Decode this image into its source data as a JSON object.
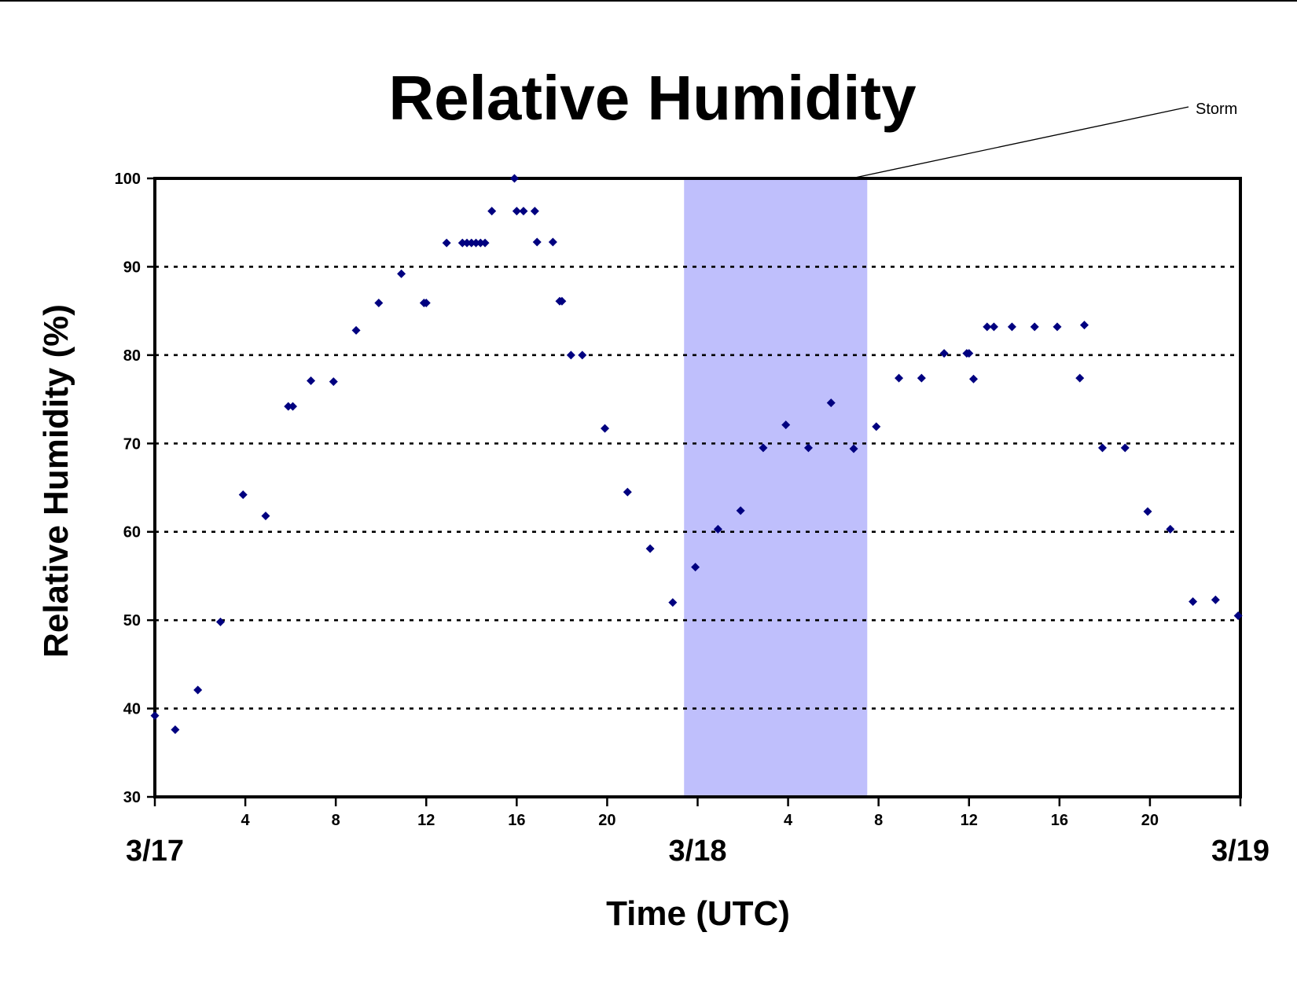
{
  "chart_data": {
    "type": "scatter",
    "title": "Relative Humidity",
    "xlabel": "Time (UTC)",
    "ylabel": "Relative Humidity (%)",
    "xlim": [
      0,
      48
    ],
    "ylim": [
      30,
      100
    ],
    "y_ticks": [
      "30",
      "40",
      "50",
      "60",
      "70",
      "80",
      "90",
      "100"
    ],
    "y_tick_values": [
      30,
      40,
      50,
      60,
      70,
      80,
      90,
      100
    ],
    "x_hour_ticks": [
      {
        "x": 4,
        "label": "4"
      },
      {
        "x": 8,
        "label": "8"
      },
      {
        "x": 12,
        "label": "12"
      },
      {
        "x": 16,
        "label": "16"
      },
      {
        "x": 20,
        "label": "20"
      },
      {
        "x": 28,
        "label": "4"
      },
      {
        "x": 32,
        "label": "8"
      },
      {
        "x": 36,
        "label": "12"
      },
      {
        "x": 40,
        "label": "16"
      },
      {
        "x": 44,
        "label": "20"
      }
    ],
    "x_minor_ticks": [
      0,
      4,
      8,
      12,
      16,
      20,
      24,
      28,
      32,
      36,
      40,
      44,
      48
    ],
    "x_date_ticks": [
      {
        "x": 0,
        "label": "3/17"
      },
      {
        "x": 24,
        "label": "3/18"
      },
      {
        "x": 48,
        "label": "3/19"
      }
    ],
    "grid": {
      "horizontal": "dotted",
      "vertical": false
    },
    "shaded_region": {
      "x_start": 23.4,
      "x_end": 31.5,
      "color": "#bfbffc"
    },
    "annotation": {
      "text": "Storm",
      "point_x": 30.8,
      "point_y": 100
    },
    "marker_color": "#000080",
    "points": [
      {
        "x": 0.0,
        "y": 39.2
      },
      {
        "x": 0.9,
        "y": 37.6
      },
      {
        "x": 1.9,
        "y": 42.1
      },
      {
        "x": 2.9,
        "y": 49.8
      },
      {
        "x": 3.9,
        "y": 64.2
      },
      {
        "x": 4.9,
        "y": 61.8
      },
      {
        "x": 5.9,
        "y": 74.2
      },
      {
        "x": 6.1,
        "y": 74.2
      },
      {
        "x": 6.9,
        "y": 77.1
      },
      {
        "x": 7.9,
        "y": 77.0
      },
      {
        "x": 8.9,
        "y": 82.8
      },
      {
        "x": 9.9,
        "y": 85.9
      },
      {
        "x": 10.9,
        "y": 89.2
      },
      {
        "x": 11.9,
        "y": 85.9
      },
      {
        "x": 12.0,
        "y": 85.9
      },
      {
        "x": 12.9,
        "y": 92.7
      },
      {
        "x": 13.6,
        "y": 92.7
      },
      {
        "x": 13.8,
        "y": 92.7
      },
      {
        "x": 14.0,
        "y": 92.7
      },
      {
        "x": 14.2,
        "y": 92.7
      },
      {
        "x": 14.4,
        "y": 92.7
      },
      {
        "x": 14.6,
        "y": 92.7
      },
      {
        "x": 14.9,
        "y": 96.3
      },
      {
        "x": 15.9,
        "y": 100.0
      },
      {
        "x": 16.0,
        "y": 96.3
      },
      {
        "x": 16.3,
        "y": 96.3
      },
      {
        "x": 16.8,
        "y": 96.3
      },
      {
        "x": 16.9,
        "y": 92.8
      },
      {
        "x": 17.6,
        "y": 92.8
      },
      {
        "x": 17.9,
        "y": 86.1
      },
      {
        "x": 18.0,
        "y": 86.1
      },
      {
        "x": 18.4,
        "y": 80.0
      },
      {
        "x": 18.9,
        "y": 80.0
      },
      {
        "x": 19.9,
        "y": 71.7
      },
      {
        "x": 20.9,
        "y": 64.5
      },
      {
        "x": 21.9,
        "y": 58.1
      },
      {
        "x": 22.9,
        "y": 52.0
      },
      {
        "x": 23.9,
        "y": 56.0
      },
      {
        "x": 24.9,
        "y": 60.3
      },
      {
        "x": 25.9,
        "y": 62.4
      },
      {
        "x": 26.9,
        "y": 69.5
      },
      {
        "x": 27.9,
        "y": 72.1
      },
      {
        "x": 28.9,
        "y": 69.5
      },
      {
        "x": 29.9,
        "y": 74.6
      },
      {
        "x": 30.9,
        "y": 69.4
      },
      {
        "x": 31.9,
        "y": 71.9
      },
      {
        "x": 32.9,
        "y": 77.4
      },
      {
        "x": 33.9,
        "y": 77.4
      },
      {
        "x": 34.9,
        "y": 80.2
      },
      {
        "x": 35.9,
        "y": 80.2
      },
      {
        "x": 36.0,
        "y": 80.2
      },
      {
        "x": 36.2,
        "y": 77.3
      },
      {
        "x": 36.8,
        "y": 83.2
      },
      {
        "x": 37.1,
        "y": 83.2
      },
      {
        "x": 37.9,
        "y": 83.2
      },
      {
        "x": 38.9,
        "y": 83.2
      },
      {
        "x": 39.9,
        "y": 83.2
      },
      {
        "x": 40.9,
        "y": 77.4
      },
      {
        "x": 41.1,
        "y": 83.4
      },
      {
        "x": 41.9,
        "y": 69.5
      },
      {
        "x": 42.9,
        "y": 69.5
      },
      {
        "x": 43.9,
        "y": 62.3
      },
      {
        "x": 44.9,
        "y": 60.3
      },
      {
        "x": 45.9,
        "y": 52.1
      },
      {
        "x": 46.9,
        "y": 52.3
      },
      {
        "x": 47.9,
        "y": 50.5
      }
    ]
  }
}
